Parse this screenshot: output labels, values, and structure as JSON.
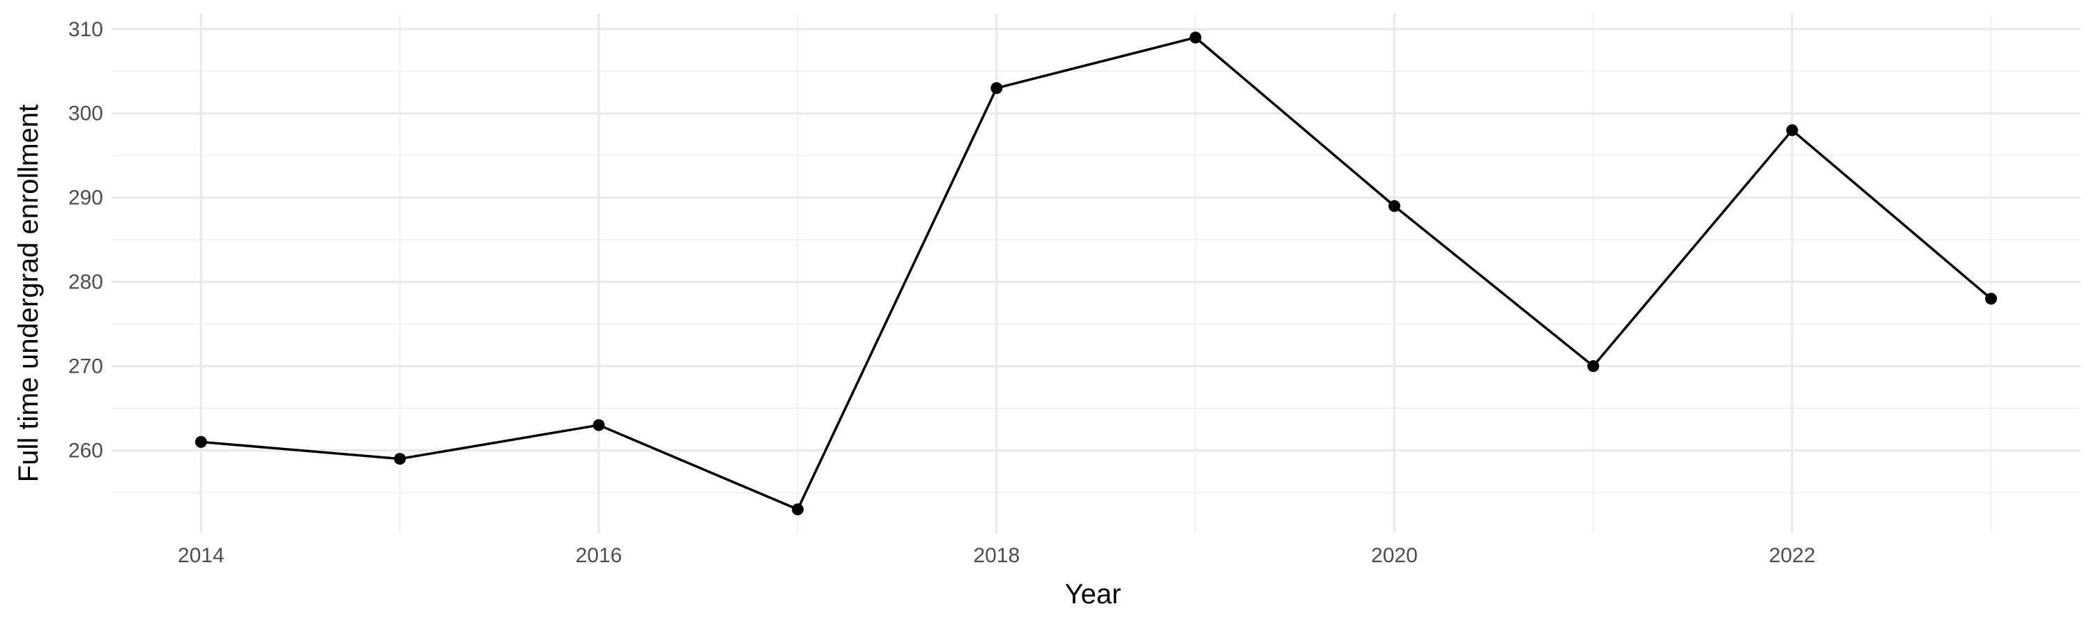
{
  "chart_data": {
    "type": "line",
    "title": "",
    "xlabel": "Year",
    "ylabel": "Full time undergrad enrollment",
    "x": [
      2014,
      2015,
      2016,
      2017,
      2018,
      2019,
      2020,
      2021,
      2022,
      2023
    ],
    "series": [
      {
        "values": [
          261,
          259,
          263,
          253,
          303,
          309,
          289,
          270,
          298,
          278
        ]
      }
    ],
    "x_ticks": [
      2014,
      2016,
      2018,
      2020,
      2022
    ],
    "y_ticks": [
      260,
      270,
      280,
      290,
      300,
      310
    ],
    "xlim": [
      2013.55,
      2023.45
    ],
    "ylim": [
      250.2,
      311.8
    ],
    "grid": true,
    "legend": "none",
    "colors": {
      "line": "#000000",
      "point": "#000000",
      "grid_major": "#ebebeb",
      "grid_minor": "#f2f2f2",
      "tick_text": "#4d4d4d",
      "title_text": "#000000"
    }
  }
}
